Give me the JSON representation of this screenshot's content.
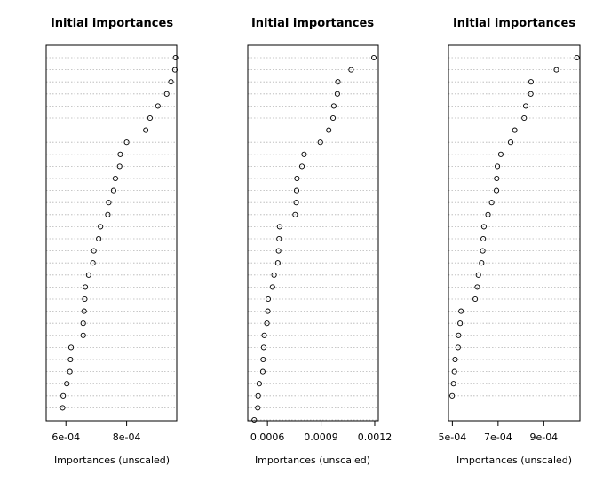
{
  "chart_data": [
    {
      "type": "scatter",
      "title": "Initial importances",
      "xlabel": "Importances (unscaled)",
      "ylabel": "",
      "grid": "horizontal dotted",
      "xlim": [
        0.000535,
        0.000965
      ],
      "xticks": [
        0.0006,
        0.0008
      ],
      "xtick_labels": [
        "6e-04",
        "8e-04"
      ],
      "values": [
        0.000961,
        0.000959,
        0.000946,
        0.000932,
        0.000903,
        0.000877,
        0.000863,
        0.0008,
        0.000779,
        0.000777,
        0.000763,
        0.000757,
        0.000741,
        0.000738,
        0.000714,
        0.000708,
        0.000692,
        0.000689,
        0.000675,
        0.000664,
        0.000662,
        0.00066,
        0.000657,
        0.000657,
        0.000617,
        0.000615,
        0.000613,
        0.000603,
        0.000591,
        0.000589
      ]
    },
    {
      "type": "scatter",
      "title": "Initial importances",
      "xlabel": "Importances (unscaled)",
      "ylabel": "",
      "grid": "horizontal dotted",
      "xlim": [
        0.00049,
        0.00122
      ],
      "xticks": [
        0.0006,
        0.0009,
        0.0012
      ],
      "xtick_labels": [
        "0.0006",
        "0.0009",
        "0.0012"
      ],
      "values": [
        0.001195,
        0.001068,
        0.000994,
        0.000991,
        0.000971,
        0.000967,
        0.000943,
        0.000896,
        0.000805,
        0.000793,
        0.000765,
        0.000763,
        0.000761,
        0.000755,
        0.000668,
        0.000665,
        0.000662,
        0.000658,
        0.000637,
        0.000628,
        0.000604,
        0.000602,
        0.000597,
        0.000582,
        0.000579,
        0.000576,
        0.000574,
        0.000554,
        0.000548,
        0.000546,
        0.000526
      ]
    },
    {
      "type": "scatter",
      "title": "Initial importances",
      "xlabel": "Importances (unscaled)",
      "ylabel": "",
      "grid": "horizontal dotted",
      "xlim": [
        0.000483,
        0.001058
      ],
      "xticks": [
        0.0005,
        0.0007,
        0.0009
      ],
      "xtick_labels": [
        "5e-04",
        "7e-04",
        "9e-04"
      ],
      "values": [
        0.001045,
        0.000955,
        0.000844,
        0.000843,
        0.000821,
        0.000814,
        0.000773,
        0.000755,
        0.000712,
        0.000697,
        0.000694,
        0.000693,
        0.000672,
        0.000656,
        0.000638,
        0.000635,
        0.000633,
        0.000628,
        0.000614,
        0.000609,
        0.0006,
        0.000538,
        0.000534,
        0.000527,
        0.000525,
        0.000512,
        0.000509,
        0.000505,
        0.000499
      ]
    }
  ]
}
